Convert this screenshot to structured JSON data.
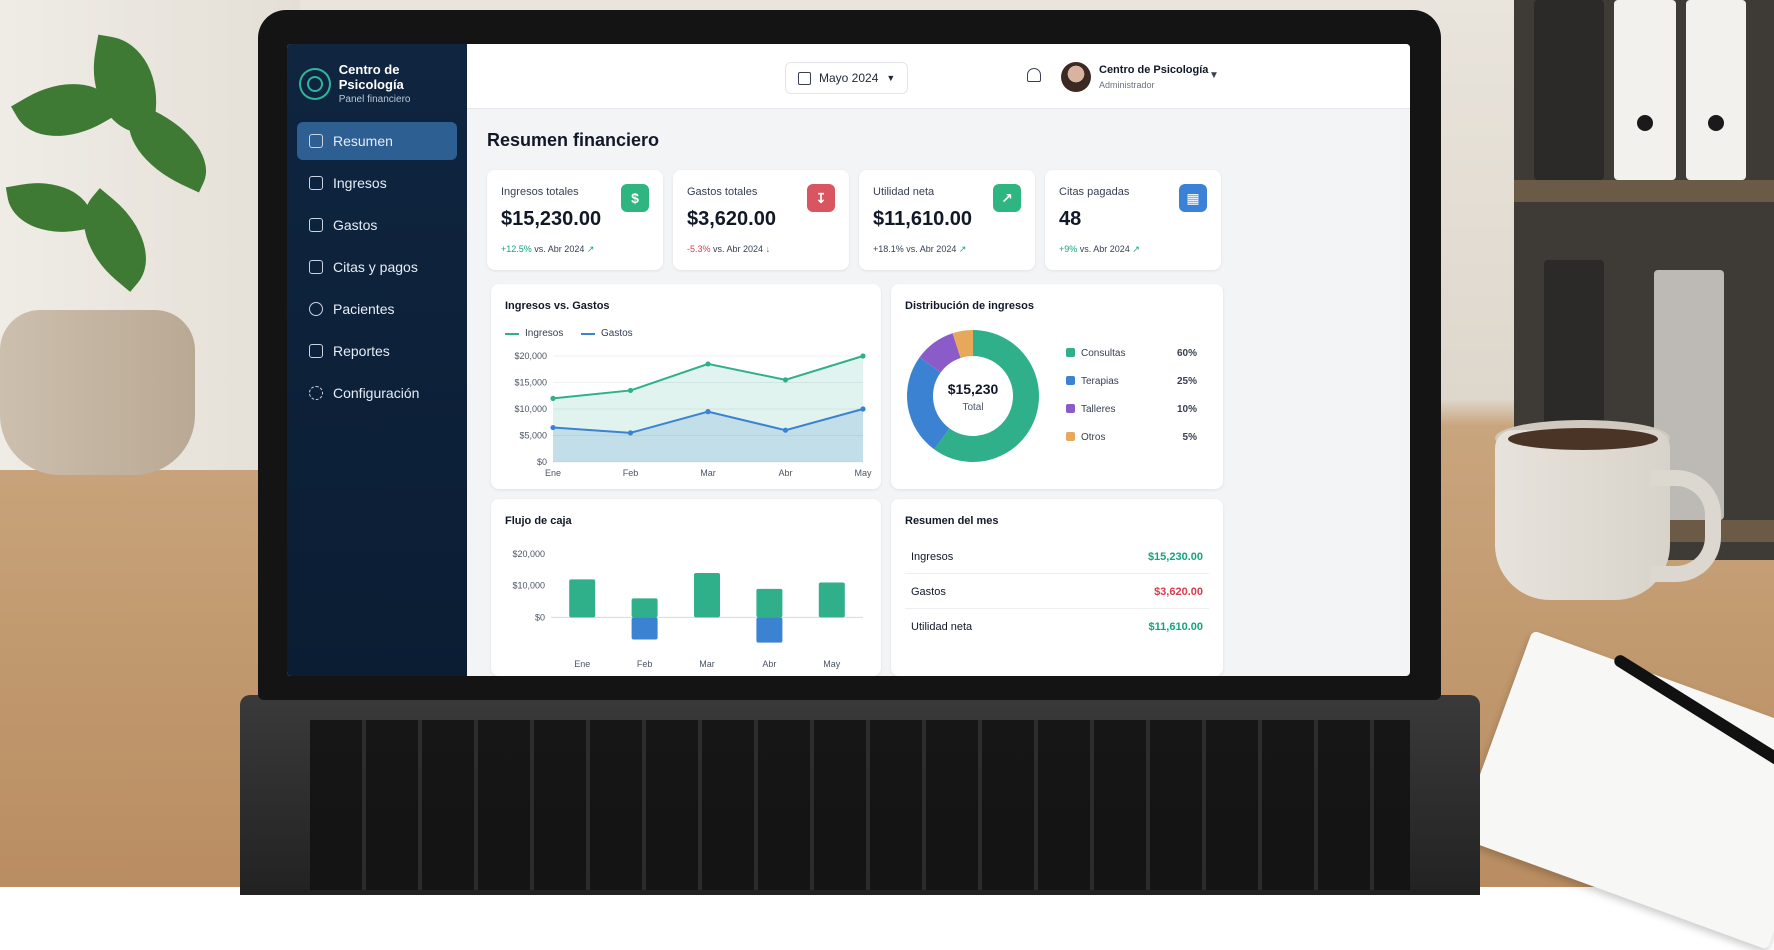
{
  "brand": {
    "title": "Centro de Psicología",
    "subtitle": "Panel financiero"
  },
  "sidebar": {
    "items": [
      {
        "label": "Resumen",
        "active": true
      },
      {
        "label": "Ingresos"
      },
      {
        "label": "Gastos"
      },
      {
        "label": "Citas y pagos"
      },
      {
        "label": "Pacientes"
      },
      {
        "label": "Reportes"
      },
      {
        "label": "Configuración"
      }
    ]
  },
  "topbar": {
    "date_label": "Mayo 2024",
    "user_name": "Centro de Psicología",
    "user_role": "Administrador"
  },
  "page_title": "Resumen financiero",
  "kpis": [
    {
      "label": "Ingresos totales",
      "value": "$15,230.00",
      "delta": "+12.5%",
      "compare": "vs. Abr 2024",
      "color": "#2fb57f",
      "icon": "dollar-icon"
    },
    {
      "label": "Gastos totales",
      "value": "$3,620.00",
      "delta": "-5.3%",
      "compare": "vs. Abr 2024",
      "color": "#d9555f",
      "icon": "download-icon"
    },
    {
      "label": "Utilidad neta",
      "value": "$11,610.00",
      "delta": "+18.1%",
      "compare": "vs. Abr 2024",
      "color": "#2fb57f",
      "icon": "trend-chart-icon"
    },
    {
      "label": "Citas pagadas",
      "value": "48",
      "delta": "+9%",
      "compare": "vs. Abr 2024",
      "color": "#3b82d6",
      "icon": "calendar-icon"
    }
  ],
  "colors": {
    "ingresos": "#2fb08a",
    "gastos": "#3c82d2",
    "talleres": "#8b5cc9",
    "otros": "#e8a85c",
    "positive": "#16a37f",
    "negative": "#dc3b4b"
  },
  "chart_data": [
    {
      "type": "area",
      "title": "Ingresos vs. Gastos",
      "categories": [
        "Ene",
        "Feb",
        "Mar",
        "Abr",
        "May"
      ],
      "series": [
        {
          "name": "Ingresos",
          "values": [
            12000,
            13500,
            18500,
            15500,
            20000
          ]
        },
        {
          "name": "Gastos",
          "values": [
            6500,
            5500,
            9500,
            6000,
            10000
          ]
        }
      ],
      "yticks": [
        "$0",
        "$5,000",
        "$10,000",
        "$15,000",
        "$20,000"
      ],
      "ylim": [
        0,
        20000
      ]
    },
    {
      "type": "pie",
      "title": "Distribución de ingresos",
      "center_value": "$15,230",
      "center_label": "Total",
      "slices": [
        {
          "name": "Consultas",
          "value": 60,
          "label": "60%"
        },
        {
          "name": "Terapias",
          "value": 25,
          "label": "25%"
        },
        {
          "name": "Talleres",
          "value": 10,
          "label": "10%"
        },
        {
          "name": "Otros",
          "value": 5,
          "label": "5%"
        }
      ]
    },
    {
      "type": "bar",
      "title": "Flujo de caja",
      "categories": [
        "Ene",
        "Feb",
        "Mar",
        "Abr",
        "May"
      ],
      "series": [
        {
          "name": "Ingresos",
          "values": [
            12000,
            6000,
            14000,
            9000,
            11000
          ]
        },
        {
          "name": "Gastos",
          "values": [
            0,
            -7000,
            0,
            -8000,
            0
          ]
        }
      ],
      "yticks": [
        "$0",
        "$10,000",
        "$20,000"
      ],
      "ylim": [
        -10000,
        20000
      ]
    }
  ],
  "summary": {
    "title": "Resumen del mes",
    "rows": [
      {
        "label": "Ingresos",
        "value": "$15,230.00"
      },
      {
        "label": "Gastos",
        "value": "$3,620.00"
      },
      {
        "label": "Utilidad neta",
        "value": "$11,610.00"
      }
    ]
  }
}
